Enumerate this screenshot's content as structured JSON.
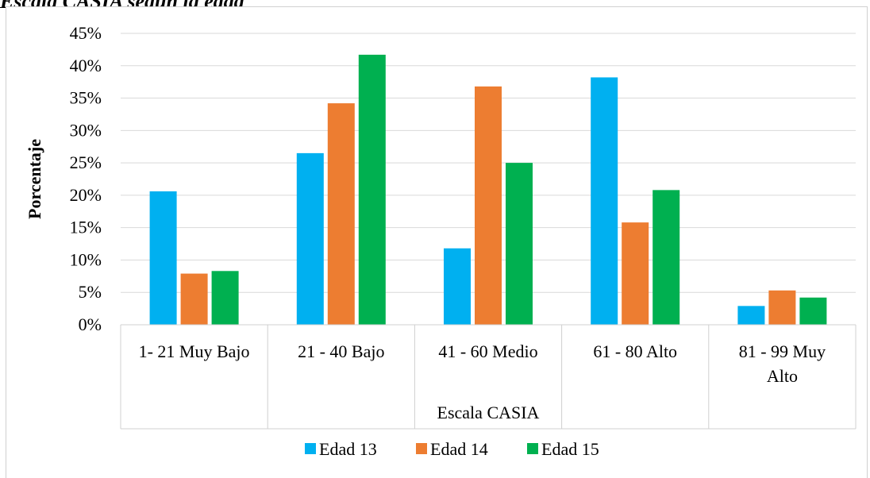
{
  "caption": "Escala CASIA según la edad",
  "chart_data": {
    "type": "bar",
    "title": "",
    "xlabel": "Escala CASIA",
    "ylabel": "Porcentaje",
    "categories": [
      "1- 21 Muy Bajo",
      "21 - 40 Bajo",
      "41 - 60 Medio",
      "61 - 80 Alto",
      "81 - 99 Muy Alto"
    ],
    "category_lines": [
      [
        "1- 21 Muy Bajo"
      ],
      [
        "21 - 40 Bajo"
      ],
      [
        "41 - 60 Medio"
      ],
      [
        "61 - 80 Alto"
      ],
      [
        "81 - 99 Muy",
        "Alto"
      ]
    ],
    "series": [
      {
        "name": "Edad 13",
        "color": "#00B0F0",
        "values": [
          20.6,
          26.5,
          11.8,
          38.2,
          2.9
        ]
      },
      {
        "name": "Edad 14",
        "color": "#ED7D31",
        "values": [
          7.9,
          34.2,
          36.8,
          15.8,
          5.3
        ]
      },
      {
        "name": "Edad 15",
        "color": "#00B050",
        "values": [
          8.3,
          41.7,
          25.0,
          20.8,
          4.2
        ]
      }
    ],
    "ylim": [
      0,
      45
    ],
    "yticks": [
      "0%",
      "5%",
      "10%",
      "15%",
      "20%",
      "25%",
      "30%",
      "35%",
      "40%",
      "45%"
    ],
    "grid": true,
    "legend_position": "bottom"
  }
}
